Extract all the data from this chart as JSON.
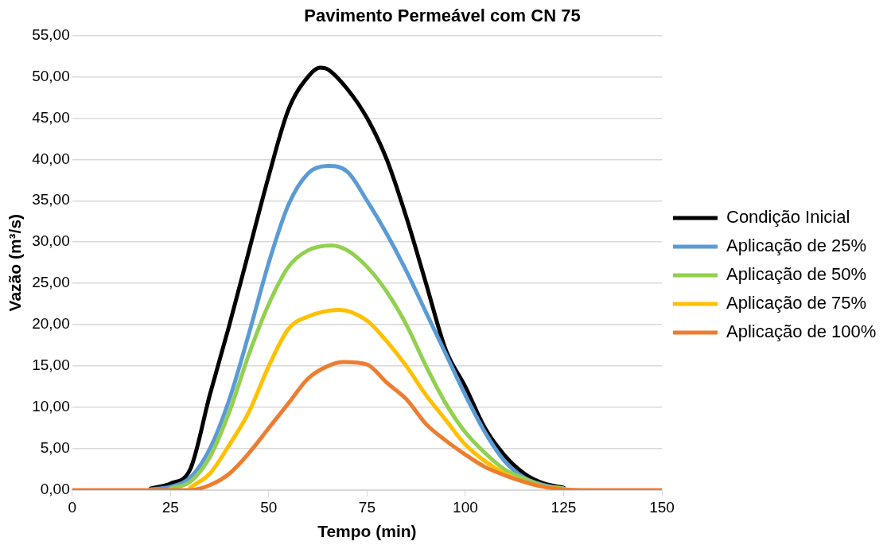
{
  "chart_data": {
    "type": "line",
    "title": "Pavimento Permeável com CN 75",
    "xlabel": "Tempo (min)",
    "ylabel": "Vazão (m³/s)",
    "xlim": [
      0,
      150
    ],
    "xticks": [
      0,
      25,
      50,
      75,
      100,
      125,
      150
    ],
    "ylim": [
      0,
      55
    ],
    "yticks": [
      {
        "value": 0,
        "label": "0,00"
      },
      {
        "value": 5,
        "label": "5,00"
      },
      {
        "value": 10,
        "label": "10,00"
      },
      {
        "value": 15,
        "label": "15,00"
      },
      {
        "value": 20,
        "label": "20,00"
      },
      {
        "value": 25,
        "label": "25,00"
      },
      {
        "value": 30,
        "label": "30,00"
      },
      {
        "value": 35,
        "label": "35,00"
      },
      {
        "value": 40,
        "label": "40,00"
      },
      {
        "value": 45,
        "label": "45,00"
      },
      {
        "value": 50,
        "label": "50,00"
      },
      {
        "value": 55,
        "label": "55,00"
      }
    ],
    "grid": "y",
    "legend": "right",
    "marker": "none",
    "line_style": "solid",
    "series": [
      {
        "name": "Condição Inicial",
        "color": "#000000",
        "x": [
          20,
          25,
          30,
          35,
          40,
          45,
          50,
          55,
          60,
          63,
          65,
          70,
          75,
          80,
          85,
          90,
          95,
          100,
          105,
          110,
          115,
          120,
          125
        ],
        "values": [
          0.2,
          0.8,
          2.5,
          11.5,
          20,
          29,
          38,
          46,
          50,
          51.1,
          50.9,
          48.5,
          45,
          40,
          33,
          25,
          17,
          12.5,
          7.5,
          4.2,
          2,
          0.8,
          0.3
        ]
      },
      {
        "name": "Aplicação de 25%",
        "color": "#5b9bd5",
        "x": [
          20,
          25,
          30,
          35,
          40,
          45,
          50,
          55,
          60,
          65,
          70,
          75,
          80,
          85,
          90,
          95,
          100,
          105,
          110,
          115,
          120,
          125
        ],
        "values": [
          0.1,
          0.4,
          1.5,
          5,
          11,
          19,
          27.5,
          34.5,
          38.3,
          39.2,
          38.5,
          35,
          31,
          26.5,
          21.5,
          16.5,
          11.5,
          7,
          3.5,
          1.5,
          0.6,
          0.2
        ]
      },
      {
        "name": "Aplicação de 50%",
        "color": "#92d050",
        "x": [
          25,
          30,
          35,
          40,
          45,
          50,
          55,
          60,
          66,
          70,
          75,
          80,
          85,
          90,
          95,
          100,
          105,
          110,
          115,
          120,
          125
        ],
        "values": [
          0.2,
          1,
          4,
          9.5,
          16.5,
          22.5,
          27,
          29,
          29.6,
          29,
          27,
          24,
          20,
          15,
          10.5,
          7,
          4.5,
          2.5,
          1.4,
          0.5,
          0.2
        ]
      },
      {
        "name": "Aplicação de 75%",
        "color": "#ffc000",
        "x": [
          30,
          35,
          40,
          45,
          50,
          55,
          60,
          68,
          75,
          80,
          85,
          90,
          95,
          100,
          105,
          110,
          115,
          120,
          125
        ],
        "values": [
          0.3,
          2,
          5.5,
          9.5,
          15,
          19.5,
          21,
          21.8,
          20.5,
          18,
          15,
          11.5,
          8.5,
          5.5,
          3.5,
          2,
          1,
          0.4,
          0.1
        ]
      },
      {
        "name": "Aplicação de 100%",
        "color": "#ed7d31",
        "x": [
          0,
          30,
          35,
          40,
          45,
          50,
          55,
          60,
          65,
          69,
          75,
          80,
          85,
          90,
          95,
          100,
          105,
          110,
          115,
          120,
          125,
          130,
          150
        ],
        "values": [
          0,
          0,
          0.6,
          2,
          4.5,
          7.5,
          10.5,
          13.5,
          15,
          15.5,
          15.2,
          13,
          11,
          8,
          6,
          4.3,
          2.8,
          1.8,
          1,
          0.4,
          0.1,
          0,
          0
        ]
      }
    ]
  }
}
